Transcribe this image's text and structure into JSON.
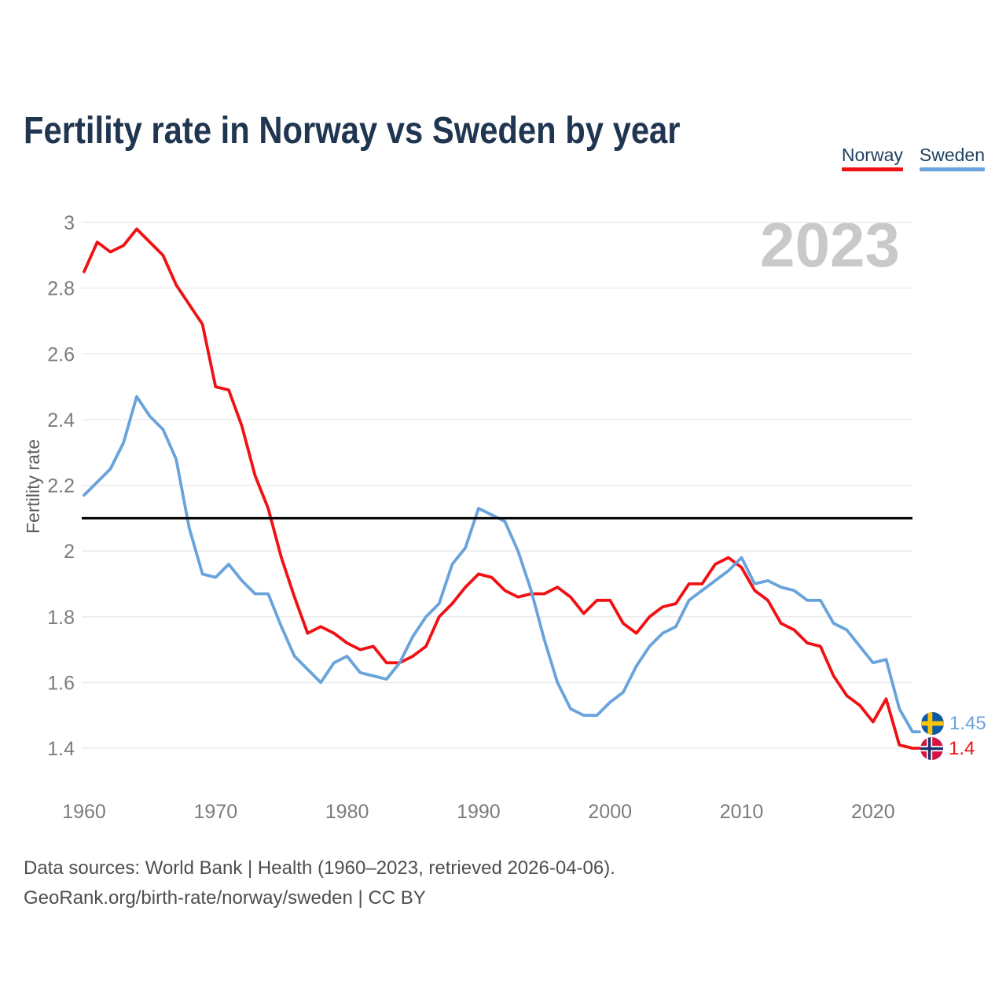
{
  "title": "Fertility rate in Norway vs Sweden by year",
  "watermark": "2023",
  "legend": {
    "items": [
      {
        "label": "Norway",
        "color": "#f01114"
      },
      {
        "label": "Sweden",
        "color": "#69a3dc"
      }
    ]
  },
  "end_labels": {
    "sweden": {
      "value": "1.45",
      "icon": "sweden-flag-icon",
      "color": "#69a3dc"
    },
    "norway": {
      "value": "1.4",
      "icon": "norway-flag-icon",
      "color": "#f01114"
    }
  },
  "footer": {
    "line1": "Data sources: World Bank | Health (1960–2023, retrieved 2026-04-06).",
    "line2": "GeoRank.org/birth-rate/norway/sweden | CC BY"
  },
  "chart_data": {
    "type": "line",
    "title": "Fertility rate in Norway vs Sweden by year",
    "xlabel": "",
    "ylabel": "Fertility rate",
    "xlim": [
      1960,
      2023
    ],
    "ylim": [
      1.4,
      3.0
    ],
    "grid": true,
    "legend_position": "top-right",
    "xticks": [
      1960,
      1970,
      1980,
      1990,
      2000,
      2010,
      2020
    ],
    "yticks": [
      3,
      2.8,
      2.6,
      2.4,
      2.2,
      2,
      1.8,
      1.6,
      1.4
    ],
    "reference_line": {
      "value": 2.1,
      "color": "#000000"
    },
    "x": [
      1960,
      1961,
      1962,
      1963,
      1964,
      1965,
      1966,
      1967,
      1968,
      1969,
      1970,
      1971,
      1972,
      1973,
      1974,
      1975,
      1976,
      1977,
      1978,
      1979,
      1980,
      1981,
      1982,
      1983,
      1984,
      1985,
      1986,
      1987,
      1988,
      1989,
      1990,
      1991,
      1992,
      1993,
      1994,
      1995,
      1996,
      1997,
      1998,
      1999,
      2000,
      2001,
      2002,
      2003,
      2004,
      2005,
      2006,
      2007,
      2008,
      2009,
      2010,
      2011,
      2012,
      2013,
      2014,
      2015,
      2016,
      2017,
      2018,
      2019,
      2020,
      2021,
      2022,
      2023
    ],
    "series": [
      {
        "name": "Norway",
        "color": "#f01114",
        "values": [
          2.85,
          2.94,
          2.91,
          2.93,
          2.98,
          2.94,
          2.9,
          2.81,
          2.75,
          2.69,
          2.5,
          2.49,
          2.38,
          2.23,
          2.13,
          1.98,
          1.86,
          1.75,
          1.77,
          1.75,
          1.72,
          1.7,
          1.71,
          1.66,
          1.66,
          1.68,
          1.71,
          1.8,
          1.84,
          1.89,
          1.93,
          1.92,
          1.88,
          1.86,
          1.87,
          1.87,
          1.89,
          1.86,
          1.81,
          1.85,
          1.85,
          1.78,
          1.75,
          1.8,
          1.83,
          1.84,
          1.9,
          1.9,
          1.96,
          1.98,
          1.95,
          1.88,
          1.85,
          1.78,
          1.76,
          1.72,
          1.71,
          1.62,
          1.56,
          1.53,
          1.48,
          1.55,
          1.41,
          1.4
        ]
      },
      {
        "name": "Sweden",
        "color": "#69a3dc",
        "values": [
          2.17,
          2.21,
          2.25,
          2.33,
          2.47,
          2.41,
          2.37,
          2.28,
          2.07,
          1.93,
          1.92,
          1.96,
          1.91,
          1.87,
          1.87,
          1.77,
          1.68,
          1.64,
          1.6,
          1.66,
          1.68,
          1.63,
          1.62,
          1.61,
          1.66,
          1.74,
          1.8,
          1.84,
          1.96,
          2.01,
          2.13,
          2.11,
          2.09,
          2.0,
          1.88,
          1.73,
          1.6,
          1.52,
          1.5,
          1.5,
          1.54,
          1.57,
          1.65,
          1.71,
          1.75,
          1.77,
          1.85,
          1.88,
          1.91,
          1.94,
          1.98,
          1.9,
          1.91,
          1.89,
          1.88,
          1.85,
          1.85,
          1.78,
          1.76,
          1.71,
          1.66,
          1.67,
          1.52,
          1.45
        ]
      }
    ]
  }
}
